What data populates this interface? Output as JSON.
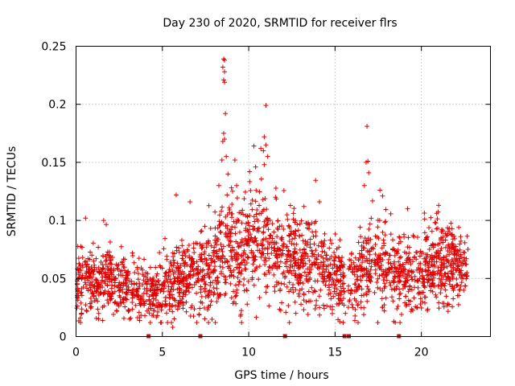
{
  "chart_data": {
    "type": "scatter",
    "title": "Day 230 of 2020, SRMTID for receiver flrs",
    "xlabel": "GPS time / hours",
    "ylabel": "SRMTID / TECUs",
    "xlim": [
      0,
      24
    ],
    "ylim": [
      0,
      0.25
    ],
    "xticks": [
      "0",
      "5",
      "10",
      "15",
      "20"
    ],
    "xtick_values": [
      0,
      5,
      10,
      15,
      20
    ],
    "yticks": [
      "0",
      "0.05",
      "0.1",
      "0.15",
      "0.2",
      "0.25"
    ],
    "ytick_values": [
      0,
      0.05,
      0.1,
      0.15,
      0.2,
      0.25
    ],
    "grid": true,
    "marker": "plus",
    "color": "#e00000",
    "outliers": [
      [
        8.55,
        0.239
      ],
      [
        8.6,
        0.238
      ],
      [
        8.5,
        0.232
      ],
      [
        8.6,
        0.228
      ],
      [
        8.55,
        0.221
      ],
      [
        8.6,
        0.219
      ],
      [
        8.65,
        0.192
      ],
      [
        8.5,
        0.168
      ],
      [
        8.6,
        0.17
      ],
      [
        8.55,
        0.175
      ],
      [
        8.45,
        0.152
      ],
      [
        8.7,
        0.155
      ],
      [
        11.0,
        0.199
      ],
      [
        10.9,
        0.172
      ],
      [
        11.0,
        0.165
      ],
      [
        10.85,
        0.16
      ],
      [
        11.1,
        0.155
      ],
      [
        10.3,
        0.164
      ],
      [
        10.7,
        0.162
      ],
      [
        10.9,
        0.148
      ],
      [
        9.2,
        0.152
      ],
      [
        9.3,
        0.13
      ],
      [
        8.8,
        0.14
      ],
      [
        9.0,
        0.128
      ],
      [
        16.85,
        0.181
      ],
      [
        16.9,
        0.151
      ],
      [
        16.8,
        0.15
      ],
      [
        16.95,
        0.141
      ],
      [
        16.7,
        0.13
      ],
      [
        17.6,
        0.126
      ],
      [
        17.75,
        0.121
      ],
      [
        6.6,
        0.116
      ],
      [
        14.1,
        0.116
      ],
      [
        21.0,
        0.113
      ],
      [
        0.55,
        0.102
      ],
      [
        1.6,
        0.1
      ],
      [
        5.8,
        0.122
      ],
      [
        13.2,
        0.112
      ],
      [
        19.2,
        0.11
      ],
      [
        10.05,
        0.142
      ],
      [
        10.4,
        0.146
      ],
      [
        11.55,
        0.12
      ],
      [
        5.6,
        0.008
      ],
      [
        4.9,
        0.012
      ],
      [
        18.4,
        0.013
      ],
      [
        0.25,
        0.016
      ],
      [
        9.55,
        0.019
      ],
      [
        15.6,
        0.02
      ]
    ],
    "envelope": [
      [
        0.0,
        0.05,
        0.014
      ],
      [
        1.0,
        0.048,
        0.014
      ],
      [
        2.0,
        0.049,
        0.014
      ],
      [
        3.0,
        0.042,
        0.014
      ],
      [
        3.8,
        0.034,
        0.012
      ],
      [
        4.4,
        0.036,
        0.012
      ],
      [
        5.2,
        0.04,
        0.014
      ],
      [
        6.0,
        0.046,
        0.015
      ],
      [
        7.0,
        0.052,
        0.016
      ],
      [
        7.8,
        0.055,
        0.018
      ],
      [
        8.5,
        0.075,
        0.024
      ],
      [
        9.2,
        0.075,
        0.024
      ],
      [
        9.8,
        0.07,
        0.022
      ],
      [
        10.5,
        0.085,
        0.024
      ],
      [
        11.2,
        0.08,
        0.022
      ],
      [
        12.0,
        0.07,
        0.02
      ],
      [
        13.0,
        0.066,
        0.02
      ],
      [
        14.0,
        0.064,
        0.02
      ],
      [
        15.0,
        0.05,
        0.016
      ],
      [
        15.6,
        0.042,
        0.014
      ],
      [
        16.2,
        0.048,
        0.016
      ],
      [
        17.0,
        0.065,
        0.02
      ],
      [
        17.8,
        0.062,
        0.02
      ],
      [
        18.8,
        0.055,
        0.016
      ],
      [
        19.5,
        0.05,
        0.015
      ],
      [
        20.5,
        0.06,
        0.018
      ],
      [
        21.5,
        0.064,
        0.018
      ],
      [
        22.3,
        0.058,
        0.016
      ],
      [
        22.7,
        0.056,
        0.015
      ]
    ],
    "x_start": 0.0,
    "x_end": 22.7,
    "n_points": 2400,
    "gaps": [
      [
        15.55,
        15.75
      ]
    ],
    "baseline_markers_x": [
      4.2,
      7.2,
      12.1,
      15.55,
      15.8,
      18.7
    ]
  }
}
